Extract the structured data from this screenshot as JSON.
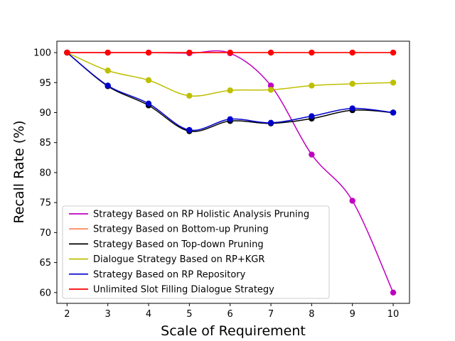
{
  "chart_data": {
    "type": "line",
    "title": "",
    "xlabel": "Scale of Requirement",
    "ylabel": "Recall Rate (%)",
    "xlim": [
      1.75,
      10.4
    ],
    "ylim": [
      58.2,
      101.9
    ],
    "xticks": [
      2,
      3,
      4,
      5,
      6,
      7,
      8,
      9,
      10
    ],
    "yticks": [
      60,
      65,
      70,
      75,
      80,
      85,
      90,
      95,
      100
    ],
    "grid": false,
    "legend_position": "lower-left",
    "x": [
      2,
      3,
      4,
      5,
      6,
      7,
      8,
      9,
      10
    ],
    "series": [
      {
        "name": "Strategy Based on RP Holistic Analysis Pruning",
        "color": "#bf00bf",
        "values": [
          100,
          100,
          100,
          99.9,
          99.9,
          94.5,
          83,
          75.3,
          60
        ]
      },
      {
        "name": "Strategy Based on Bottom-up Pruning",
        "color": "#ff7f50",
        "values": [
          100,
          100,
          100,
          100,
          100,
          100,
          100,
          100,
          100
        ]
      },
      {
        "name": "Strategy Based on Top-down Pruning",
        "color": "#000000",
        "values": [
          100,
          94.4,
          91.2,
          86.9,
          88.6,
          88.2,
          89,
          90.4,
          90
        ]
      },
      {
        "name": "Dialogue Strategy Based on RP+KGR",
        "color": "#bfbf00",
        "values": [
          100,
          97,
          95.4,
          92.8,
          93.7,
          93.8,
          94.5,
          94.8,
          95
        ]
      },
      {
        "name": "Strategy Based on RP Repository",
        "color": "#0000cd",
        "values": [
          100,
          94.5,
          91.5,
          87.1,
          88.9,
          88.3,
          89.4,
          90.7,
          90
        ]
      },
      {
        "name": "Unlimited Slot Filling Dialogue Strategy",
        "color": "#ff0000",
        "values": [
          100,
          100,
          100,
          100,
          100,
          100,
          100,
          100,
          100
        ]
      }
    ]
  }
}
